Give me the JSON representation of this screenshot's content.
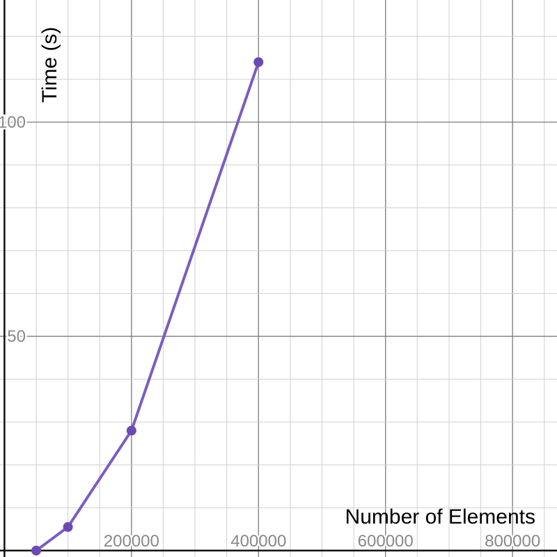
{
  "chart_data": {
    "type": "line",
    "xlabel": "Number of Elements",
    "ylabel": "Time (s)",
    "xlim": [
      -7000,
      870000
    ],
    "ylim": [
      -1.5,
      128.5
    ],
    "x_ticks": [
      {
        "value": 200000,
        "label": "200000"
      },
      {
        "value": 400000,
        "label": "400000"
      },
      {
        "value": 600000,
        "label": "600000"
      },
      {
        "value": 800000,
        "label": "800000"
      }
    ],
    "y_ticks": [
      {
        "value": 50,
        "label": "50"
      },
      {
        "value": 100,
        "label": "100"
      }
    ],
    "grid": true,
    "grid_minor_x_step": 50000,
    "grid_minor_y_step": 10,
    "grid_major_x_step": 200000,
    "grid_major_y_step": 50,
    "series": [
      {
        "color": "#7c5cc0",
        "marker_color": "#6b4ab5",
        "points": [
          {
            "x": 50000,
            "y": 0
          },
          {
            "x": 100000,
            "y": 5.5
          },
          {
            "x": 200000,
            "y": 28
          },
          {
            "x": 400000,
            "y": 114
          }
        ]
      }
    ]
  }
}
